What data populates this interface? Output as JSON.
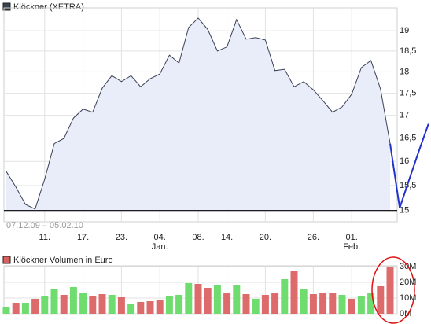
{
  "chart_data": [
    {
      "type": "line",
      "title": "Klöckner (XETRA)",
      "title_color": "#3b4452",
      "date_range": "07.12.09 – 05.02.10",
      "categories": [
        null,
        null,
        null,
        null,
        "11.",
        null,
        null,
        null,
        "17.",
        null,
        null,
        null,
        "23.",
        null,
        null,
        null,
        "04. Jan.",
        null,
        null,
        null,
        "08.",
        null,
        null,
        "14.",
        null,
        null,
        null,
        "20.",
        null,
        null,
        null,
        null,
        "26.",
        null,
        null,
        null,
        "01. Feb.",
        null,
        null,
        null,
        null,
        null,
        null,
        null,
        null
      ],
      "series": [
        {
          "color": "#3a3f55",
          "values": [
            15.79,
            15.47,
            15.12,
            15.03,
            15.63,
            16.38,
            16.49,
            16.94,
            17.14,
            17.07,
            17.62,
            17.91,
            17.77,
            17.91,
            17.65,
            17.84,
            17.95,
            18.4,
            18.21,
            19.08,
            19.32,
            19.03,
            18.5,
            18.6,
            19.28,
            18.79,
            18.83,
            18.77,
            18.03,
            18.06,
            17.65,
            17.77,
            17.58,
            17.33,
            17.07,
            17.19,
            17.48,
            18.1,
            18.27,
            17.6,
            16.38,
            null,
            null,
            null,
            null
          ]
        },
        {
          "color": "#2233cc",
          "values": [
            null,
            null,
            null,
            null,
            null,
            null,
            null,
            null,
            null,
            null,
            null,
            null,
            null,
            null,
            null,
            null,
            null,
            null,
            null,
            null,
            null,
            null,
            null,
            null,
            null,
            null,
            null,
            null,
            null,
            null,
            null,
            null,
            null,
            null,
            null,
            null,
            null,
            null,
            null,
            null,
            16.38,
            15.05,
            15.63,
            16.22,
            16.81
          ]
        }
      ],
      "fill": "#e9edf9",
      "baseline": 15,
      "log_scale": true,
      "grid": true,
      "ylim": [
        14.78,
        19.58
      ],
      "yticks": [
        {
          "value": 15,
          "label": "15"
        },
        {
          "value": 15.5,
          "label": "15,5"
        },
        {
          "value": 16,
          "label": "16"
        },
        {
          "value": 16.5,
          "label": "16,5"
        },
        {
          "value": 17,
          "label": "17"
        },
        {
          "value": 17.5,
          "label": "17,5"
        },
        {
          "value": 18,
          "label": "18"
        },
        {
          "value": 18.5,
          "label": "18,5"
        },
        {
          "value": 19,
          "label": "19"
        }
      ]
    },
    {
      "type": "bar",
      "title": "Klöckner Volumen in Euro",
      "title_color": "#d9605e",
      "values": [
        4500000,
        7000000,
        7000000,
        9500000,
        11000000,
        15500000,
        12000000,
        17000000,
        13000000,
        11500000,
        12500000,
        12000000,
        10500000,
        6500000,
        7500000,
        8000000,
        8500000,
        11500000,
        12000000,
        19500000,
        19000000,
        16500000,
        18500000,
        13000000,
        18500000,
        12500000,
        9500000,
        12000000,
        13000000,
        22000000,
        27000000,
        15500000,
        12500000,
        13000000,
        13000000,
        12000000,
        9500000,
        11500000,
        13000000,
        17500000,
        29500000
      ],
      "colors": [
        "#6fdc6f",
        "#de6b6b",
        "#6fdc6f",
        "#de6b6b",
        "#6fdc6f",
        "#6fdc6f",
        "#de6b6b",
        "#6fdc6f",
        "#6fdc6f",
        "#de6b6b",
        "#de6b6b",
        "#6fdc6f",
        "#de6b6b",
        "#6fdc6f",
        "#de6b6b",
        "#de6b6b",
        "#de6b6b",
        "#6fdc6f",
        "#6fdc6f",
        "#6fdc6f",
        "#de6b6b",
        "#de6b6b",
        "#6fdc6f",
        "#de6b6b",
        "#6fdc6f",
        "#de6b6b",
        "#6fdc6f",
        "#de6b6b",
        "#de6b6b",
        "#6fdc6f",
        "#de6b6b",
        "#6fdc6f",
        "#de6b6b",
        "#de6b6b",
        "#de6b6b",
        "#6fdc6f",
        "#de6b6b",
        "#6fdc6f",
        "#6fdc6f",
        "#de6b6b",
        "#de6b6b"
      ],
      "grid": true,
      "ylim": [
        0,
        30000000
      ],
      "yticks": [
        {
          "value": 0,
          "label": "0M"
        },
        {
          "value": 10000000,
          "label": "10M"
        },
        {
          "value": 20000000,
          "label": "20M"
        },
        {
          "value": 30000000,
          "label": "30M"
        }
      ]
    }
  ]
}
